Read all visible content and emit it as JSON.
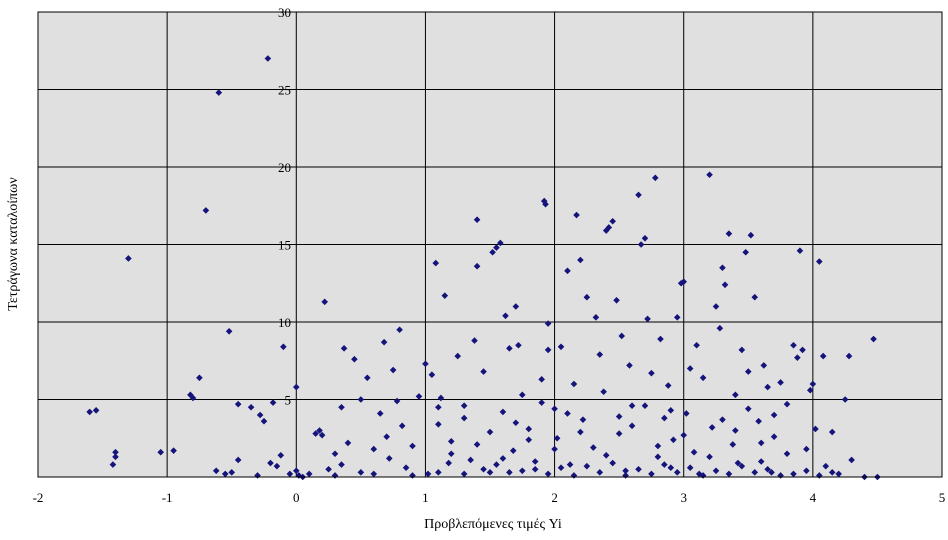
{
  "chart_data": {
    "type": "scatter",
    "xlabel": "Προβλεπόμενες τιμές  Yi",
    "ylabel": "Τετράγωνα καταλοίπων",
    "xlim": [
      -2,
      5
    ],
    "ylim": [
      0,
      30
    ],
    "x_ticks": [
      -2,
      -1,
      0,
      1,
      2,
      3,
      4,
      5
    ],
    "y_ticks": [
      5,
      10,
      15,
      20,
      25,
      30
    ],
    "grid": true,
    "plot_background": "#e0e0e0",
    "marker_color": "#14147a",
    "marker": "diamond",
    "points_note": "Approximately 900 observations; representative subset listed",
    "points": [
      [
        -1.6,
        4.2
      ],
      [
        -1.55,
        4.3
      ],
      [
        -1.4,
        1.6
      ],
      [
        -1.4,
        1.3
      ],
      [
        -1.42,
        0.8
      ],
      [
        -1.3,
        14.1
      ],
      [
        -1.05,
        1.6
      ],
      [
        -0.95,
        1.7
      ],
      [
        -0.82,
        5.3
      ],
      [
        -0.8,
        5.1
      ],
      [
        -0.75,
        6.4
      ],
      [
        -0.7,
        17.2
      ],
      [
        -0.62,
        0.4
      ],
      [
        -0.6,
        24.8
      ],
      [
        -0.55,
        0.2
      ],
      [
        -0.52,
        9.4
      ],
      [
        -0.5,
        0.3
      ],
      [
        -0.45,
        4.7
      ],
      [
        -0.45,
        1.1
      ],
      [
        -0.35,
        4.5
      ],
      [
        -0.3,
        0.1
      ],
      [
        -0.28,
        4.0
      ],
      [
        -0.25,
        3.6
      ],
      [
        -0.22,
        27.0
      ],
      [
        -0.2,
        0.9
      ],
      [
        -0.18,
        4.8
      ],
      [
        -0.15,
        0.7
      ],
      [
        -0.12,
        1.4
      ],
      [
        -0.1,
        8.4
      ],
      [
        -0.05,
        0.2
      ],
      [
        0.0,
        5.8
      ],
      [
        0.0,
        0.4
      ],
      [
        0.02,
        0.1
      ],
      [
        0.1,
        0.2
      ],
      [
        0.15,
        2.8
      ],
      [
        0.18,
        3.0
      ],
      [
        0.2,
        2.7
      ],
      [
        0.22,
        11.3
      ],
      [
        0.25,
        0.5
      ],
      [
        0.3,
        1.5
      ],
      [
        0.35,
        0.8
      ],
      [
        0.35,
        4.5
      ],
      [
        0.37,
        8.3
      ],
      [
        0.4,
        2.2
      ],
      [
        0.45,
        7.6
      ],
      [
        0.5,
        0.3
      ],
      [
        0.5,
        5.0
      ],
      [
        0.55,
        6.4
      ],
      [
        0.6,
        1.8
      ],
      [
        0.65,
        4.1
      ],
      [
        0.68,
        8.7
      ],
      [
        0.7,
        2.6
      ],
      [
        0.72,
        1.2
      ],
      [
        0.75,
        6.9
      ],
      [
        0.78,
        4.9
      ],
      [
        0.8,
        9.5
      ],
      [
        0.82,
        3.3
      ],
      [
        0.85,
        0.6
      ],
      [
        0.9,
        2.0
      ],
      [
        0.95,
        5.2
      ],
      [
        1.0,
        7.3
      ],
      [
        1.02,
        0.2
      ],
      [
        1.05,
        6.6
      ],
      [
        1.08,
        13.8
      ],
      [
        1.1,
        3.4
      ],
      [
        1.12,
        5.1
      ],
      [
        1.15,
        11.7
      ],
      [
        1.18,
        0.9
      ],
      [
        1.2,
        2.3
      ],
      [
        1.25,
        7.8
      ],
      [
        1.3,
        4.6
      ],
      [
        1.35,
        1.1
      ],
      [
        1.38,
        8.8
      ],
      [
        1.4,
        16.6
      ],
      [
        1.4,
        13.6
      ],
      [
        1.45,
        6.8
      ],
      [
        1.5,
        2.9
      ],
      [
        1.5,
        0.3
      ],
      [
        1.52,
        14.5
      ],
      [
        1.55,
        14.8
      ],
      [
        1.58,
        15.1
      ],
      [
        1.6,
        4.2
      ],
      [
        1.62,
        10.4
      ],
      [
        1.65,
        8.3
      ],
      [
        1.68,
        1.7
      ],
      [
        1.7,
        11.0
      ],
      [
        1.72,
        8.5
      ],
      [
        1.75,
        5.3
      ],
      [
        1.8,
        3.1
      ],
      [
        1.85,
        0.5
      ],
      [
        1.9,
        6.3
      ],
      [
        1.92,
        17.8
      ],
      [
        1.93,
        17.6
      ],
      [
        1.95,
        9.9
      ],
      [
        1.95,
        8.2
      ],
      [
        2.0,
        4.4
      ],
      [
        2.02,
        2.5
      ],
      [
        2.05,
        8.4
      ],
      [
        2.1,
        13.3
      ],
      [
        2.12,
        0.8
      ],
      [
        2.15,
        6.0
      ],
      [
        2.17,
        16.9
      ],
      [
        2.2,
        14.0
      ],
      [
        2.22,
        3.7
      ],
      [
        2.25,
        11.6
      ],
      [
        2.3,
        1.9
      ],
      [
        2.32,
        10.3
      ],
      [
        2.35,
        7.9
      ],
      [
        2.38,
        5.5
      ],
      [
        2.4,
        15.9
      ],
      [
        2.42,
        16.1
      ],
      [
        2.45,
        16.5
      ],
      [
        2.48,
        11.4
      ],
      [
        2.5,
        2.8
      ],
      [
        2.52,
        9.1
      ],
      [
        2.55,
        0.4
      ],
      [
        2.58,
        7.2
      ],
      [
        2.6,
        4.6
      ],
      [
        2.65,
        18.2
      ],
      [
        2.67,
        15.0
      ],
      [
        2.7,
        15.4
      ],
      [
        2.72,
        10.2
      ],
      [
        2.75,
        6.7
      ],
      [
        2.78,
        19.3
      ],
      [
        2.8,
        1.3
      ],
      [
        2.82,
        8.9
      ],
      [
        2.85,
        3.8
      ],
      [
        2.88,
        5.9
      ],
      [
        2.9,
        0.6
      ],
      [
        2.92,
        2.4
      ],
      [
        2.95,
        10.3
      ],
      [
        2.98,
        12.5
      ],
      [
        3.0,
        12.6
      ],
      [
        3.02,
        4.1
      ],
      [
        3.05,
        7.0
      ],
      [
        3.08,
        1.6
      ],
      [
        3.1,
        8.5
      ],
      [
        3.12,
        0.2
      ],
      [
        3.15,
        6.4
      ],
      [
        3.2,
        19.5
      ],
      [
        3.22,
        3.2
      ],
      [
        3.25,
        11.0
      ],
      [
        3.28,
        9.6
      ],
      [
        3.3,
        13.5
      ],
      [
        3.32,
        12.4
      ],
      [
        3.35,
        15.7
      ],
      [
        3.38,
        2.1
      ],
      [
        3.4,
        5.3
      ],
      [
        3.42,
        0.9
      ],
      [
        3.45,
        8.2
      ],
      [
        3.48,
        14.5
      ],
      [
        3.5,
        6.8
      ],
      [
        3.52,
        15.6
      ],
      [
        3.55,
        11.6
      ],
      [
        3.58,
        3.6
      ],
      [
        3.6,
        1.0
      ],
      [
        3.62,
        7.2
      ],
      [
        3.65,
        5.8
      ],
      [
        3.68,
        0.3
      ],
      [
        3.7,
        2.6
      ],
      [
        3.75,
        6.1
      ],
      [
        3.8,
        4.7
      ],
      [
        3.85,
        8.5
      ],
      [
        3.88,
        7.7
      ],
      [
        3.9,
        14.6
      ],
      [
        3.92,
        8.2
      ],
      [
        3.95,
        1.8
      ],
      [
        3.98,
        5.6
      ],
      [
        4.0,
        6.0
      ],
      [
        4.02,
        3.1
      ],
      [
        4.05,
        13.9
      ],
      [
        4.08,
        7.8
      ],
      [
        4.1,
        0.7
      ],
      [
        4.15,
        2.9
      ],
      [
        4.2,
        0.2
      ],
      [
        4.25,
        5.0
      ],
      [
        4.28,
        7.8
      ],
      [
        4.3,
        1.1
      ],
      [
        4.4,
        0.0
      ],
      [
        4.47,
        8.9
      ],
      [
        4.5,
        0.0
      ],
      [
        0.05,
        0.0
      ],
      [
        0.3,
        0.1
      ],
      [
        0.6,
        0.2
      ],
      [
        0.9,
        0.1
      ],
      [
        1.1,
        0.3
      ],
      [
        1.3,
        0.2
      ],
      [
        1.45,
        0.5
      ],
      [
        1.55,
        0.8
      ],
      [
        1.65,
        0.3
      ],
      [
        1.75,
        0.4
      ],
      [
        1.85,
        1.0
      ],
      [
        1.95,
        0.2
      ],
      [
        2.05,
        0.6
      ],
      [
        2.15,
        0.1
      ],
      [
        2.25,
        0.7
      ],
      [
        2.35,
        0.3
      ],
      [
        2.45,
        0.9
      ],
      [
        2.55,
        0.1
      ],
      [
        2.65,
        0.5
      ],
      [
        2.75,
        0.2
      ],
      [
        2.85,
        0.8
      ],
      [
        2.95,
        0.3
      ],
      [
        3.05,
        0.6
      ],
      [
        3.15,
        0.1
      ],
      [
        3.25,
        0.4
      ],
      [
        3.35,
        0.2
      ],
      [
        3.45,
        0.7
      ],
      [
        3.55,
        0.3
      ],
      [
        3.65,
        0.5
      ],
      [
        3.75,
        0.1
      ],
      [
        3.85,
        0.2
      ],
      [
        3.95,
        0.4
      ],
      [
        4.05,
        0.1
      ],
      [
        4.15,
        0.3
      ],
      [
        1.2,
        1.5
      ],
      [
        1.4,
        2.1
      ],
      [
        1.6,
        1.2
      ],
      [
        1.8,
        2.4
      ],
      [
        2.0,
        1.8
      ],
      [
        2.2,
        2.9
      ],
      [
        2.4,
        1.4
      ],
      [
        2.6,
        3.3
      ],
      [
        2.8,
        2.0
      ],
      [
        3.0,
        2.7
      ],
      [
        3.2,
        1.3
      ],
      [
        3.4,
        3.0
      ],
      [
        3.6,
        2.2
      ],
      [
        3.8,
        1.5
      ],
      [
        1.3,
        3.8
      ],
      [
        1.7,
        3.5
      ],
      [
        2.1,
        4.1
      ],
      [
        2.5,
        3.9
      ],
      [
        2.9,
        4.3
      ],
      [
        3.3,
        3.7
      ],
      [
        3.7,
        4.0
      ],
      [
        1.1,
        4.5
      ],
      [
        1.9,
        4.8
      ],
      [
        2.7,
        4.6
      ],
      [
        3.5,
        4.4
      ]
    ]
  }
}
